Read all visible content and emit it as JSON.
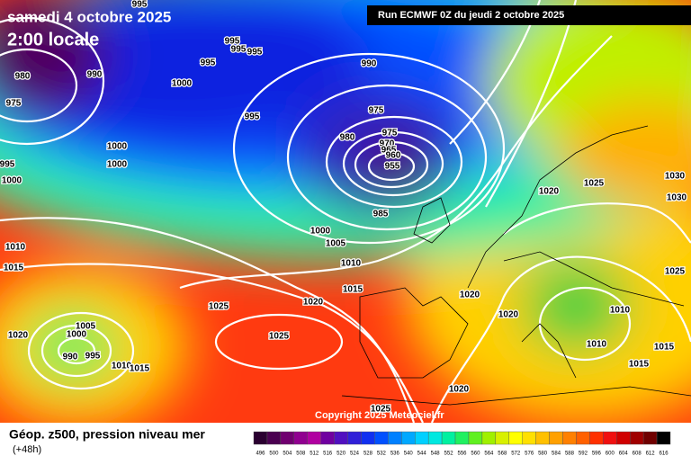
{
  "header": {
    "date": "samedi 4 octobre 2025",
    "time": "2:00 locale",
    "run": "Run ECMWF 0Z du jeudi 2 octobre 2025"
  },
  "map": {
    "copyright": "Copyright 2025 Meteociel.fr",
    "isobar_labels": [
      995,
      980,
      975,
      990,
      995,
      995,
      995,
      995,
      1000,
      995,
      990,
      975,
      980,
      975,
      970,
      965,
      960,
      955,
      985,
      1000,
      1000,
      995,
      1000,
      1010,
      1015,
      1000,
      1005,
      1010,
      1015,
      1020,
      1025,
      1020,
      1020,
      1020,
      1025,
      1030,
      1030,
      1025,
      1010,
      1010,
      1015,
      1015,
      1020,
      1025,
      1020,
      1005,
      1000,
      990,
      995,
      1010,
      1015,
      1025
    ]
  },
  "footer": {
    "title": "Géop. z500, pression niveau mer",
    "lead": "(+48h)",
    "scale_labels": [
      496,
      500,
      504,
      508,
      512,
      516,
      520,
      524,
      528,
      532,
      536,
      540,
      544,
      548,
      552,
      556,
      560,
      564,
      568,
      572,
      576,
      580,
      584,
      588,
      592,
      596,
      600,
      604,
      608,
      612,
      616
    ],
    "scale_colors": [
      "#2a0030",
      "#4a0050",
      "#700070",
      "#900090",
      "#b000a0",
      "#7000a0",
      "#5010c0",
      "#3020d8",
      "#1030f0",
      "#0050ff",
      "#0080ff",
      "#00a8ff",
      "#00d0ff",
      "#00e8e0",
      "#00f0a0",
      "#20f060",
      "#60f020",
      "#a0f000",
      "#d8f000",
      "#ffff00",
      "#ffe000",
      "#ffc000",
      "#ffa000",
      "#ff8000",
      "#ff6000",
      "#ff3000",
      "#f01010",
      "#d00000",
      "#a00000",
      "#700000",
      "#000000"
    ]
  }
}
